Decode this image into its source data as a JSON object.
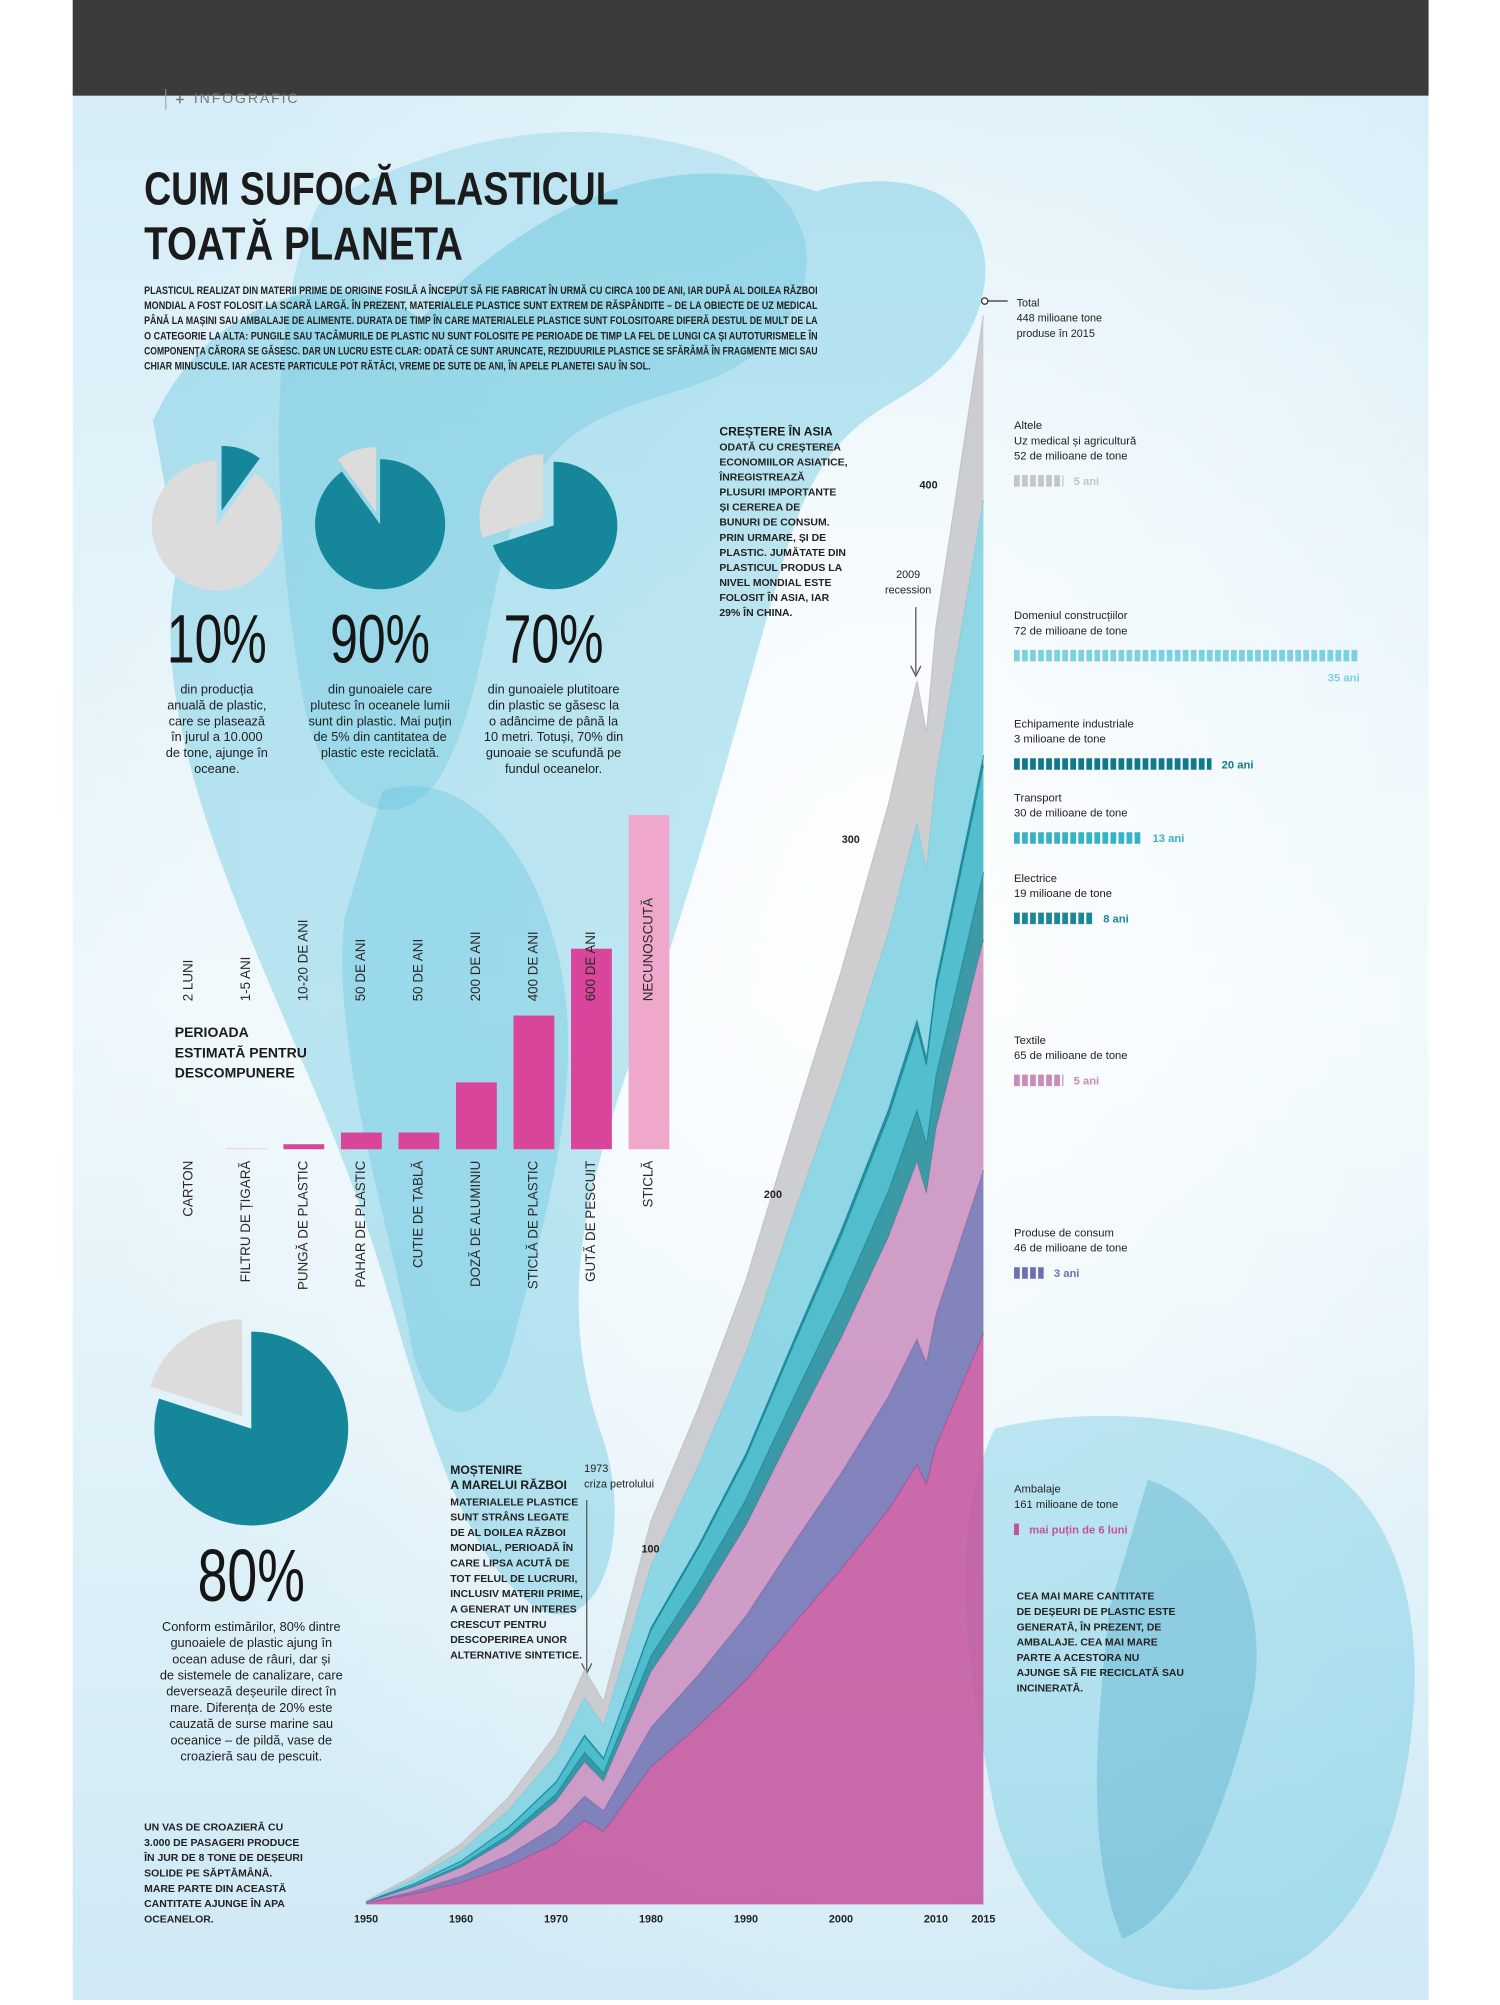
{
  "header": {
    "section": "INFOGRAFIC",
    "title": [
      "CUM SUFOCĂ PLASTICUL",
      "TOATĂ PLANETA"
    ],
    "intro": [
      "PLASTICUL REALIZAT DIN MATERII PRIME DE ORIGINE FOSILĂ A ÎNCEPUT SĂ FIE FABRICAT ÎN URMĂ CU CIRCA 100 DE ANI, IAR DUPĂ AL DOILEA RĂZBOI",
      "MONDIAL A FOST FOLOSIT LA SCARĂ LARGĂ. ÎN PREZENT, MATERIALELE PLASTICE SUNT EXTREM DE RĂSPÂNDITE – DE LA OBIECTE DE UZ MEDICAL",
      "PÂNĂ LA MAȘINI SAU AMBALAJE DE ALIMENTE. DURATA DE TIMP ÎN CARE MATERIALELE PLASTICE SUNT FOLOSITOARE DIFERĂ DESTUL DE MULT DE LA",
      "O CATEGORIE LA ALTA: PUNGILE SAU TACÂMURILE DE PLASTIC NU SUNT FOLOSITE PE PERIOADE DE TIMP LA FEL DE LUNGI CA ȘI AUTOTURISMELE ÎN",
      "COMPONENȚA CĂRORA SE GĂSESC. DAR UN LUCRU ESTE CLAR: ODATĂ CE SUNT ARUNCATE, REZIDUURILE PLASTICE SE SFĂRÂMĂ ÎN FRAGMENTE MICI SAU",
      "CHIAR MINUSCULE. IAR ACESTE PARTICULE POT RĂTĂCI, VREME DE SUTE DE ANI, ÎN APELE PLANETEI SAU ÎN SOL."
    ]
  },
  "notes": {
    "asia": {
      "title": "CREȘTERE ÎN ASIA",
      "lines": [
        "ODATĂ CU CREȘTEREA",
        "ECONOMIILOR ASIATICE,",
        "ÎNREGISTREAZĂ",
        "PLUSURI IMPORTANTE",
        "ȘI CEREREA DE",
        "BUNURI DE CONSUM.",
        "PRIN URMARE, ȘI DE",
        "PLASTIC. JUMĂTATE DIN",
        "PLASTICUL PRODUS LA",
        "NIVEL MONDIAL ESTE",
        "FOLOSIT ÎN ASIA, IAR",
        "29% ÎN CHINA."
      ]
    },
    "war": {
      "title": [
        "MOȘTENIRE",
        "A MARELUI RĂZBOI"
      ],
      "lines": [
        "MATERIALELE PLASTICE",
        "SUNT STRÂNS LEGATE",
        "DE AL DOILEA RĂZBOI",
        "MONDIAL, PERIOADĂ ÎN",
        "CARE LIPSA ACUTĂ DE",
        "TOT FELUL DE LUCRURI,",
        "INCLUSIV MATERII PRIME,",
        "A GENERAT UN INTERES",
        "CRESCUT PENTRU",
        "DESCOPERIREA UNOR",
        "ALTERNATIVE SINTETICE."
      ]
    },
    "recession": [
      "2009",
      "recession"
    ],
    "oil": [
      "1973",
      "criza petrolului"
    ],
    "total": [
      "Total",
      "448 milioane tone",
      "produse în 2015"
    ],
    "packaging": [
      "CEA MAI MARE CANTITATE",
      "DE DEȘEURI DE PLASTIC ESTE",
      "GENERATĂ, ÎN PREZENT, DE",
      "AMBALAJE. CEA MAI MARE",
      "PARTE A ACESTORA NU",
      "AJUNGE SĂ FIE RECICLATĂ SAU",
      "INCINERATĂ."
    ],
    "cruise": [
      "UN VAS DE CROAZIERĂ CU",
      "3.000 DE PASAGERI PRODUCE",
      "ÎN JUR DE 8 TONE DE DEȘEURI",
      "SOLIDE PE SĂPTĂMÂNĂ.",
      "MARE PARTE DIN ACEASTĂ",
      "CANTITATE AJUNGE ÎN APA",
      "OCEANELOR."
    ]
  },
  "chart_data": [
    {
      "type": "pie",
      "value": 10,
      "value_label": "10%",
      "colors": [
        "#16869a",
        "#dcdcdc"
      ],
      "caption": [
        "din producția",
        "anuală de plastic,",
        "care se plasează",
        "în jurul a 10.000",
        "de tone, ajunge în",
        "oceane."
      ]
    },
    {
      "type": "pie",
      "value": 90,
      "value_label": "90%",
      "colors": [
        "#16869a",
        "#dcdcdc"
      ],
      "caption": [
        "din gunoaiele care",
        "plutesc în oceanele lumii",
        "sunt din plastic. Mai puțin",
        "de 5% din cantitatea de",
        "plastic este reciclată."
      ]
    },
    {
      "type": "pie",
      "value": 70,
      "value_label": "70%",
      "colors": [
        "#16869a",
        "#dcdcdc"
      ],
      "caption": [
        "din gunoaiele plutitoare",
        "din plastic se găsesc la",
        "o adâncime de până la",
        "10 metri. Totuși, 70% din",
        "gunoaie se scufundă pe",
        "fundul oceanelor."
      ]
    },
    {
      "type": "pie",
      "value": 80,
      "value_label": "80%",
      "colors": [
        "#16869a",
        "#dcdcdc"
      ],
      "caption": [
        "Conform estimărilor, 80% dintre",
        "gunoaiele de plastic ajung în",
        "ocean aduse de râuri, dar și",
        "de sistemele de canalizare, care",
        "deversează deșeurile direct în",
        "mare. Diferența de 20% este",
        "cauzată de surse marine sau",
        "oceanice – de pildă, vase de",
        "croazieră sau de pescuit."
      ]
    },
    {
      "type": "bar",
      "title": [
        "PERIOADA",
        "ESTIMATĂ PENTRU",
        "DESCOMPUNERE"
      ],
      "categories": [
        "CARTON",
        "FILTRU DE ȚIGARĂ",
        "PUNGĂ DE PLASTIC",
        "PAHAR DE PLASTIC",
        "CUTIE DE TABLĂ",
        "DOZĂ DE ALUMINIU",
        "STICLĂ DE PLASTIC",
        "GUTĂ DE PESCUIT",
        "STICLĂ"
      ],
      "values": [
        0.17,
        3,
        15,
        50,
        50,
        200,
        400,
        600,
        1000
      ],
      "value_labels": [
        "2 LUNI",
        "1-5 ANI",
        "10-20 DE ANI",
        "50 DE ANI",
        "50 DE ANI",
        "200 DE ANI",
        "400 DE ANI",
        "600 DE ANI",
        "NECUNOSCUTĂ"
      ],
      "colors": [
        "#e3dde2",
        "#f2c6dc",
        "#d9459a",
        "#d9459a",
        "#d9459a",
        "#d9459a",
        "#d9459a",
        "#d9459a",
        "#efa8cc"
      ]
    },
    {
      "type": "area",
      "stacked": true,
      "x": [
        1950,
        1955,
        1960,
        1965,
        1970,
        1973,
        1975,
        1980,
        1985,
        1990,
        1995,
        2000,
        2005,
        2008,
        2009,
        2010,
        2012,
        2015
      ],
      "xlim": [
        1950,
        2015
      ],
      "xticks": [
        1950,
        1960,
        1970,
        1980,
        1990,
        2000,
        2010,
        2015
      ],
      "ylim": [
        0,
        460
      ],
      "yticks": [
        100,
        200,
        300,
        400
      ],
      "series": [
        {
          "name": "Ambalaje",
          "amount_label": "161 milioane de tone",
          "color": "#c4519b",
          "lifespan": 0.5,
          "lifespan_label": "mai puțin de 6 luni",
          "values": [
            0.4,
            2.9,
            6.1,
            10.8,
            17.2,
            23.7,
            20.5,
            38.8,
            50.3,
            63.2,
            79,
            94.4,
            111.3,
            123.9,
            118.5,
            129.2,
            141.8,
            161
          ]
        },
        {
          "name": "Produse de consum",
          "amount_label": "46 de milioane de tone",
          "color": "#6e6fb0",
          "lifespan": 3,
          "lifespan_label": "3 ani",
          "values": [
            0.1,
            0.8,
            1.8,
            3.1,
            4.9,
            6.8,
            5.9,
            11.1,
            14.4,
            18.1,
            22.7,
            27.1,
            31.9,
            35.5,
            34,
            37.1,
            40.7,
            46
          ]
        },
        {
          "name": "Textile",
          "amount_label": "65 de milioane de tone",
          "color": "#c98cbd",
          "lifespan": 5,
          "lifespan_label": "5 ani",
          "values": [
            0.1,
            1.2,
            2.5,
            4.4,
            7,
            9.6,
            8.3,
            15.7,
            20.3,
            25.5,
            31.9,
            38.1,
            45,
            50,
            47.9,
            52.2,
            57.3,
            65
          ]
        },
        {
          "name": "Electrice",
          "amount_label": "19 milioane de tone",
          "color": "#1b8797",
          "lifespan": 8,
          "lifespan_label": "8 ani",
          "values": [
            0.1,
            0.3,
            0.7,
            1.3,
            2,
            2.8,
            2.4,
            4.5,
            5.9,
            7.4,
            9.2,
            11,
            13,
            14.5,
            13.9,
            15.1,
            16.6,
            19
          ]
        },
        {
          "name": "Transport",
          "amount_label": "30 de milioane de tone",
          "color": "#35b3c4",
          "lifespan": 13,
          "lifespan_label": "13 ani",
          "values": [
            0.1,
            0.5,
            1.1,
            2,
            3.2,
            4.4,
            3.8,
            7.2,
            9.4,
            11.8,
            14.7,
            17.6,
            20.8,
            23.1,
            22.1,
            24.1,
            26.5,
            30
          ]
        },
        {
          "name": "Echipamente industriale",
          "amount_label": "3 milioane de tone",
          "color": "#117a8a",
          "lifespan": 20,
          "lifespan_label": "20 ani",
          "values": [
            0,
            0.1,
            0.1,
            0.2,
            0.3,
            0.5,
            0.4,
            0.8,
            1,
            1.2,
            1.5,
            1.8,
            2.2,
            2.4,
            2.3,
            2.5,
            2.8,
            3
          ]
        },
        {
          "name": "Domeniul construcțiilor",
          "amount_label": "72 de milioane de tone",
          "color": "#7dd0e0",
          "lifespan": 35,
          "lifespan_label": "35 ani",
          "values": [
            0.1,
            1.3,
            2.7,
            4.8,
            7.7,
            10.6,
            9.2,
            17.4,
            22.5,
            28.3,
            35.4,
            42.3,
            49.9,
            55.5,
            53.1,
            58,
            63.6,
            72
          ]
        },
        {
          "name": "Altele",
          "detail": "Uz medical și agricultură",
          "amount_label": "52 de milioane de tone",
          "color": "#c5c5c9",
          "lifespan": 5,
          "lifespan_label": "5 ani",
          "values": [
            0.1,
            0.9,
            2,
            3.5,
            5.6,
            7.7,
            6.6,
            12.5,
            16.2,
            20.4,
            25.5,
            30.5,
            36,
            40,
            38.3,
            41.8,
            45.8,
            52
          ]
        }
      ]
    }
  ]
}
